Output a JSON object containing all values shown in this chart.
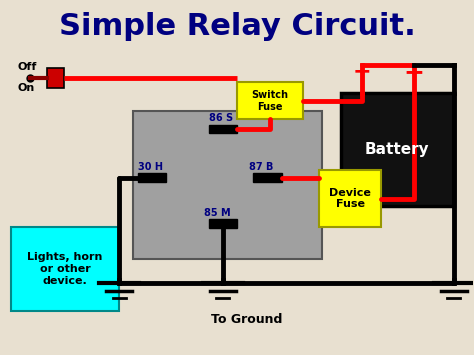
{
  "title": "Simple Relay Circuit.",
  "title_fontsize": 22,
  "title_color": "#000080",
  "bg_color": "#e8e0d0",
  "relay_color": "#a0a0a0",
  "battery_color": "#111111",
  "battery_text": "Battery",
  "battery_text_color": "#ffffff",
  "switch_fuse_color": "#ffff00",
  "switch_fuse_text": "Switch\nFuse",
  "device_fuse_color": "#ffff00",
  "device_fuse_text": "Device\nFuse",
  "device_color": "#00ffff",
  "device_text": "Lights, horn\nor other\ndevice.",
  "off_label": "Off",
  "on_label": "On",
  "to_ground_label": "To Ground",
  "pin_color": "#000080",
  "pin_fontsize": 7
}
